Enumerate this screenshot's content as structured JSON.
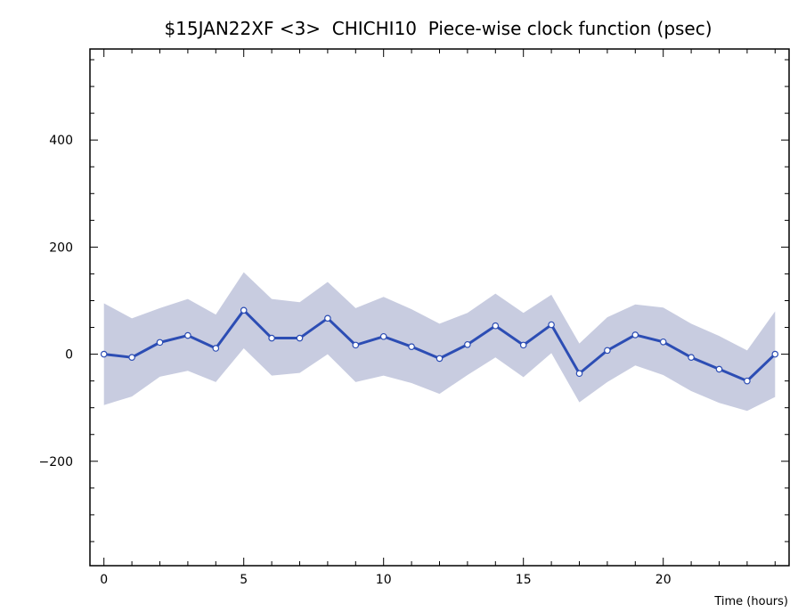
{
  "chart_data": {
    "type": "line",
    "title": "$15JAN22XF <3>  CHICHI10  Piece-wise clock function (psec)",
    "xlabel": "Time (hours)",
    "ylabel": "",
    "xlim": [
      -0.5,
      24.5
    ],
    "ylim": [
      -395,
      570
    ],
    "x_ticks": [
      0,
      5,
      10,
      15,
      20
    ],
    "x_tick_labels": [
      "0",
      "5",
      "10",
      "15",
      "20"
    ],
    "y_ticks": [
      -200,
      0,
      200,
      400
    ],
    "y_tick_labels": [
      "−200",
      "0",
      "200",
      "400"
    ],
    "grid": false,
    "legend": "none",
    "colors": {
      "line": "#2c4db4",
      "band": "#c8cce0",
      "marker_fill": "#ffffff"
    },
    "x": [
      0,
      1,
      2,
      3,
      4,
      5,
      6,
      7,
      8,
      9,
      10,
      11,
      12,
      13,
      14,
      15,
      16,
      17,
      18,
      19,
      20,
      21,
      22,
      23,
      24
    ],
    "series": [
      {
        "values": [
          0,
          -6,
          22,
          35,
          11,
          82,
          30,
          30,
          67,
          17,
          33,
          14,
          -8,
          18,
          53,
          17,
          55,
          -36,
          7,
          36,
          23,
          -6,
          -28,
          -50,
          0
        ],
        "band_upper": [
          95,
          67,
          86,
          103,
          74,
          153,
          103,
          97,
          135,
          86,
          107,
          84,
          57,
          77,
          113,
          77,
          111,
          20,
          69,
          93,
          87,
          57,
          34,
          7,
          80
        ],
        "band_lower": [
          -95,
          -79,
          -42,
          -31,
          -52,
          11,
          -40,
          -35,
          0,
          -52,
          -40,
          -54,
          -74,
          -39,
          -6,
          -43,
          2,
          -90,
          -52,
          -21,
          -39,
          -69,
          -91,
          -106,
          -80
        ]
      }
    ]
  }
}
